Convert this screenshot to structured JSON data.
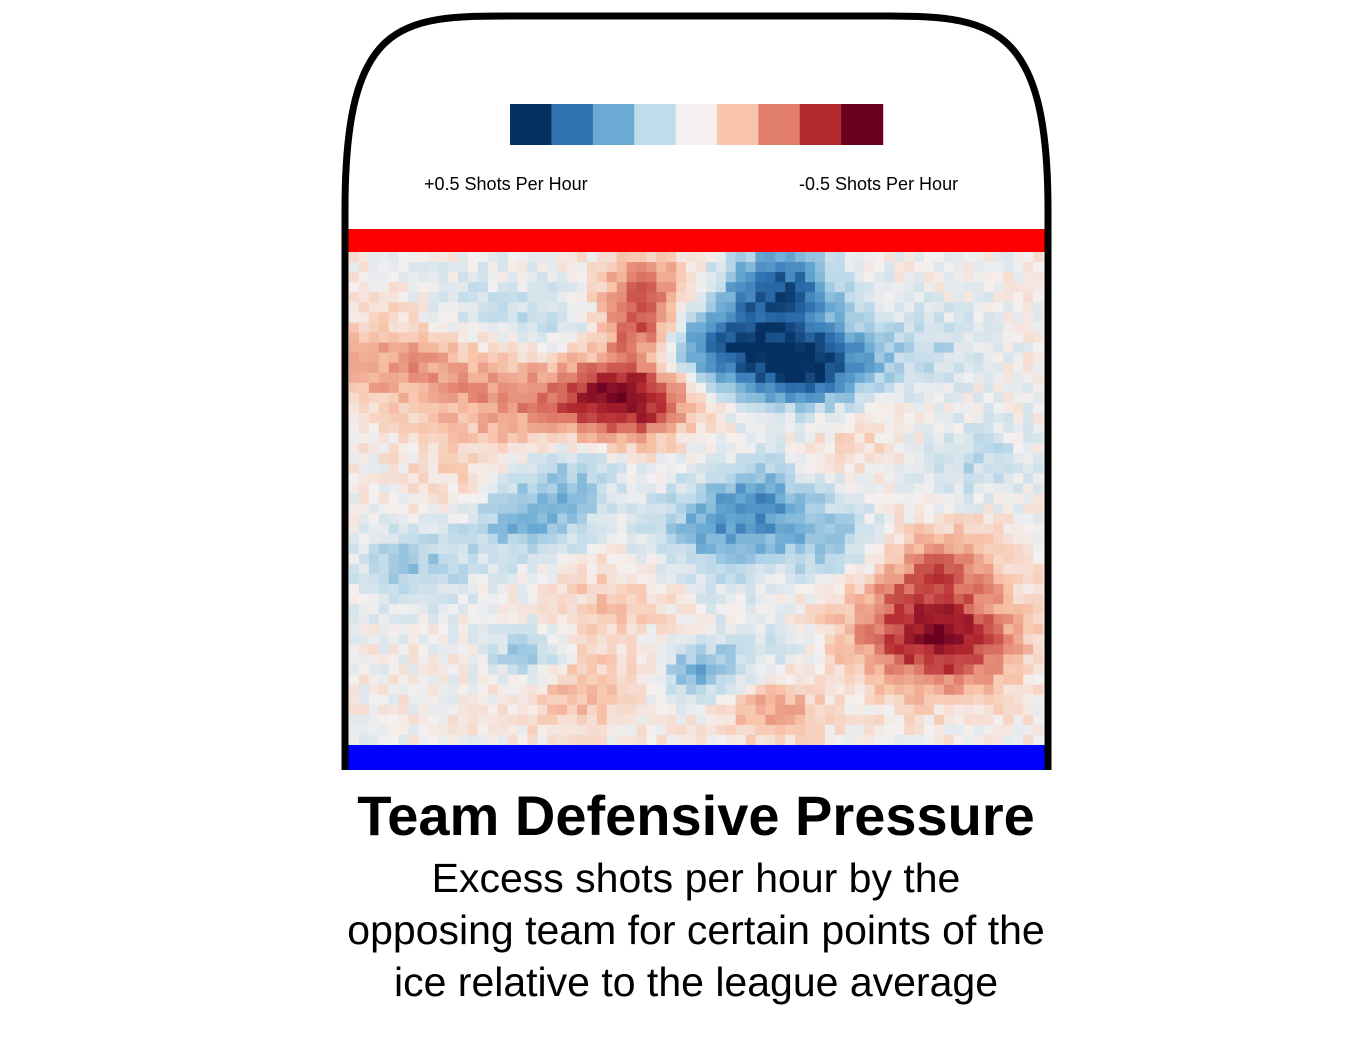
{
  "chart_data": {
    "type": "heatmap",
    "title": "Team Defensive Pressure",
    "subtitle": "Excess shots per hour by the opposing team for certain points of the ice relative to the league average",
    "legend": {
      "left_label": "+0.5 Shots Per Hour",
      "right_label": "-0.5 Shots Per Hour",
      "colors": [
        "#053061",
        "#2f72b2",
        "#6aaad3",
        "#c0dbea",
        "#f4f0ef",
        "#f8c4aa",
        "#e07e6b",
        "#b3282f",
        "#69001f"
      ]
    },
    "value_range": [
      -0.5,
      0.5
    ],
    "grid": {
      "cols": 70,
      "rows": 49
    },
    "blobs": [
      {
        "x": 0.43,
        "y": 0.08,
        "r": 0.05,
        "v": -0.3
      },
      {
        "x": 0.42,
        "y": 0.16,
        "r": 0.04,
        "v": -0.25
      },
      {
        "x": 0.42,
        "y": 0.29,
        "r": 0.06,
        "v": -0.4
      },
      {
        "x": 0.34,
        "y": 0.31,
        "r": 0.06,
        "v": -0.2
      },
      {
        "x": 0.21,
        "y": 0.29,
        "r": 0.08,
        "v": -0.18
      },
      {
        "x": 0.06,
        "y": 0.22,
        "r": 0.07,
        "v": -0.18
      },
      {
        "x": 0.62,
        "y": 0.07,
        "r": 0.06,
        "v": 0.4
      },
      {
        "x": 0.52,
        "y": 0.19,
        "r": 0.06,
        "v": 0.35
      },
      {
        "x": 0.62,
        "y": 0.22,
        "r": 0.06,
        "v": 0.25
      },
      {
        "x": 0.68,
        "y": 0.23,
        "r": 0.06,
        "v": 0.35
      },
      {
        "x": 0.83,
        "y": 0.19,
        "r": 0.06,
        "v": 0.12
      },
      {
        "x": 0.18,
        "y": 0.12,
        "r": 0.06,
        "v": 0.1
      },
      {
        "x": 0.3,
        "y": 0.14,
        "r": 0.05,
        "v": 0.12
      },
      {
        "x": 0.9,
        "y": 0.43,
        "r": 0.06,
        "v": 0.12
      },
      {
        "x": 0.26,
        "y": 0.54,
        "r": 0.06,
        "v": 0.25
      },
      {
        "x": 0.33,
        "y": 0.44,
        "r": 0.05,
        "v": 0.15
      },
      {
        "x": 0.09,
        "y": 0.64,
        "r": 0.06,
        "v": 0.18
      },
      {
        "x": 0.26,
        "y": 0.82,
        "r": 0.04,
        "v": 0.2
      },
      {
        "x": 0.53,
        "y": 0.57,
        "r": 0.07,
        "v": 0.22
      },
      {
        "x": 0.6,
        "y": 0.5,
        "r": 0.06,
        "v": 0.2
      },
      {
        "x": 0.7,
        "y": 0.6,
        "r": 0.06,
        "v": 0.18
      },
      {
        "x": 0.51,
        "y": 0.85,
        "r": 0.04,
        "v": 0.25
      },
      {
        "x": 0.61,
        "y": 0.8,
        "r": 0.05,
        "v": 0.1
      },
      {
        "x": 0.8,
        "y": 0.74,
        "r": 0.09,
        "v": -0.22
      },
      {
        "x": 0.87,
        "y": 0.8,
        "r": 0.07,
        "v": -0.3
      },
      {
        "x": 0.86,
        "y": 0.63,
        "r": 0.06,
        "v": -0.18
      },
      {
        "x": 0.61,
        "y": 0.93,
        "r": 0.05,
        "v": -0.18
      },
      {
        "x": 0.38,
        "y": 0.7,
        "r": 0.06,
        "v": -0.12
      },
      {
        "x": 0.33,
        "y": 0.89,
        "r": 0.06,
        "v": -0.15
      },
      {
        "x": 0.73,
        "y": 0.38,
        "r": 0.06,
        "v": -0.08
      },
      {
        "x": 0.15,
        "y": 0.47,
        "r": 0.05,
        "v": -0.08
      }
    ]
  }
}
